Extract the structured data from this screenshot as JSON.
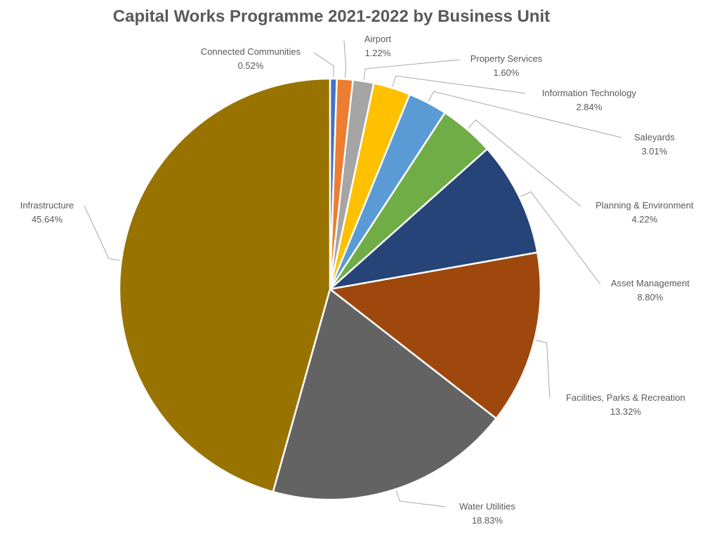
{
  "chart_data": {
    "type": "pie",
    "title": "Capital Works Programme 2021-2022 by Business Unit",
    "slices": [
      {
        "label": "Connected Communities",
        "value": 0.52,
        "value_text": "0.52%",
        "color": "#4472c4"
      },
      {
        "label": "Airport",
        "value": 1.22,
        "value_text": "1.22%",
        "color": "#ed7d31"
      },
      {
        "label": "Property Services",
        "value": 1.6,
        "value_text": "1.60%",
        "color": "#a5a5a5"
      },
      {
        "label": "Information Technology",
        "value": 2.84,
        "value_text": "2.84%",
        "color": "#ffc000"
      },
      {
        "label": "Saleyards",
        "value": 3.01,
        "value_text": "3.01%",
        "color": "#5b9bd5"
      },
      {
        "label": "Planning & Environment",
        "value": 4.22,
        "value_text": "4.22%",
        "color": "#70ad47"
      },
      {
        "label": "Asset Management",
        "value": 8.8,
        "value_text": "8.80%",
        "color": "#264478"
      },
      {
        "label": "Facilities, Parks & Recreation",
        "value": 13.32,
        "value_text": "13.32%",
        "color": "#9e480e"
      },
      {
        "label": "Water Utilities",
        "value": 18.83,
        "value_text": "18.83%",
        "color": "#636363"
      },
      {
        "label": "Infrastructure",
        "value": 45.64,
        "value_text": "45.64%",
        "color": "#997300"
      }
    ],
    "legend": "none",
    "label_style": "leader-lines"
  }
}
